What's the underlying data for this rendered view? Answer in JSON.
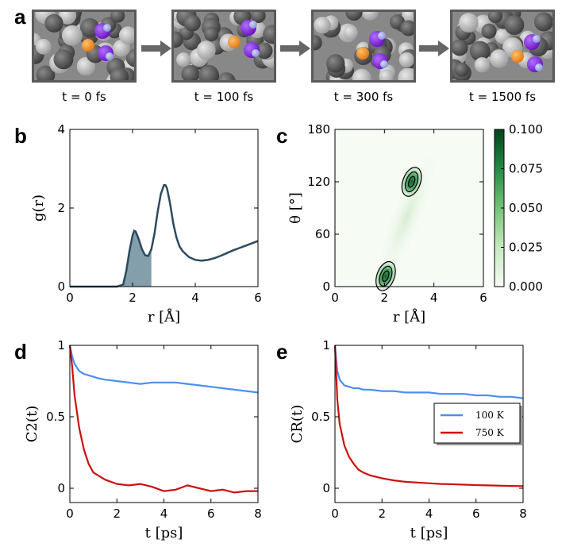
{
  "panel_a": {
    "letter": "a",
    "snapshots": [
      {
        "label": "t = 0 fs"
      },
      {
        "label": "t = 100 fs"
      },
      {
        "label": "t = 300 fs"
      },
      {
        "label": "t = 1500 fs"
      }
    ]
  },
  "colors": {
    "dark_atom": "#505050",
    "light_atom": "#b4b4b4",
    "orange_atom": "#f08c1e",
    "purple_atom": "#8a2be2",
    "rdf_line": "#2c4a5e",
    "rdf_fill": "#6f8d9e",
    "blue_series": "#4a8ff0",
    "red_series": "#cc1010",
    "arrow": "#666666"
  },
  "chart_data": [
    {
      "panel": "b",
      "type": "area",
      "xlabel": "r [Å]",
      "ylabel": "g(r)",
      "xlim": [
        0,
        6
      ],
      "ylim": [
        0,
        4
      ],
      "xticks": [
        "0",
        "2",
        "4",
        "6"
      ],
      "yticks": [
        "0",
        "2",
        "4"
      ],
      "shaded_range": [
        1.7,
        2.6
      ],
      "x": [
        0,
        1.5,
        1.7,
        1.8,
        1.9,
        2.0,
        2.05,
        2.1,
        2.2,
        2.3,
        2.4,
        2.5,
        2.6,
        2.7,
        2.8,
        2.9,
        3.0,
        3.05,
        3.1,
        3.2,
        3.3,
        3.4,
        3.5,
        3.6,
        3.8,
        4.0,
        4.2,
        4.4,
        4.6,
        4.8,
        5.0,
        5.2,
        5.4,
        5.6,
        5.8,
        6.0
      ],
      "y": [
        0,
        0,
        0.05,
        0.4,
        0.9,
        1.3,
        1.42,
        1.4,
        1.2,
        0.95,
        0.8,
        0.78,
        0.95,
        1.35,
        1.9,
        2.35,
        2.58,
        2.58,
        2.5,
        2.1,
        1.6,
        1.25,
        1.02,
        0.9,
        0.75,
        0.68,
        0.66,
        0.68,
        0.72,
        0.78,
        0.85,
        0.92,
        0.98,
        1.04,
        1.1,
        1.16
      ]
    },
    {
      "panel": "c",
      "type": "heatmap",
      "xlabel": "r [Å]",
      "ylabel": "θ [°]",
      "xlim": [
        0,
        6
      ],
      "ylim": [
        0,
        180
      ],
      "xticks": [
        "0",
        "2",
        "4",
        "6"
      ],
      "yticks": [
        "0",
        "60",
        "120",
        "180"
      ],
      "colorbar": {
        "min": 0.0,
        "max": 0.1,
        "ticks": [
          "0.000",
          "0.025",
          "0.050",
          "0.075",
          "0.100"
        ]
      },
      "peaks": [
        {
          "r": 2.05,
          "theta": 12,
          "value": 0.06
        },
        {
          "r": 3.1,
          "theta": 120,
          "value": 0.07
        }
      ]
    },
    {
      "panel": "d",
      "type": "line",
      "xlabel": "t [ps]",
      "ylabel": "C2(t)",
      "xlim": [
        0,
        8
      ],
      "ylim": [
        -0.1,
        1
      ],
      "xticks": [
        "0",
        "2",
        "4",
        "6",
        "8"
      ],
      "yticks": [
        "0",
        "0.5",
        "1"
      ],
      "x": [
        0,
        0.1,
        0.2,
        0.4,
        0.6,
        0.8,
        1.0,
        1.2,
        1.5,
        2.0,
        2.5,
        3.0,
        3.5,
        4.0,
        4.5,
        5.0,
        5.5,
        6.0,
        6.5,
        7.0,
        7.5,
        8.0
      ],
      "series": [
        {
          "name": "100 K",
          "values": [
            1.0,
            0.92,
            0.87,
            0.82,
            0.8,
            0.79,
            0.78,
            0.77,
            0.76,
            0.75,
            0.74,
            0.73,
            0.74,
            0.74,
            0.74,
            0.73,
            0.72,
            0.71,
            0.7,
            0.69,
            0.68,
            0.67
          ]
        },
        {
          "name": "750 K",
          "values": [
            1.0,
            0.85,
            0.65,
            0.42,
            0.27,
            0.17,
            0.11,
            0.09,
            0.06,
            0.03,
            0.02,
            0.03,
            0.01,
            -0.02,
            -0.01,
            0.02,
            0.0,
            -0.02,
            -0.01,
            -0.03,
            -0.02,
            -0.02
          ]
        }
      ]
    },
    {
      "panel": "e",
      "type": "line",
      "xlabel": "t [ps]",
      "ylabel": "CR(t)",
      "xlim": [
        0,
        8
      ],
      "ylim": [
        -0.1,
        1
      ],
      "xticks": [
        "0",
        "2",
        "4",
        "6",
        "8"
      ],
      "yticks": [
        "0",
        "0.5",
        "1"
      ],
      "x": [
        0,
        0.1,
        0.2,
        0.4,
        0.6,
        0.8,
        1.0,
        1.2,
        1.5,
        2.0,
        2.5,
        3.0,
        3.5,
        4.0,
        4.5,
        5.0,
        5.5,
        6.0,
        6.5,
        7.0,
        7.5,
        8.0
      ],
      "series": [
        {
          "name": "100 K",
          "values": [
            1.0,
            0.82,
            0.76,
            0.72,
            0.71,
            0.7,
            0.7,
            0.69,
            0.69,
            0.68,
            0.68,
            0.67,
            0.67,
            0.67,
            0.66,
            0.66,
            0.66,
            0.65,
            0.65,
            0.64,
            0.64,
            0.63
          ]
        },
        {
          "name": "750 K",
          "values": [
            1.0,
            0.62,
            0.45,
            0.3,
            0.22,
            0.17,
            0.13,
            0.11,
            0.09,
            0.07,
            0.055,
            0.045,
            0.04,
            0.035,
            0.03,
            0.028,
            0.025,
            0.022,
            0.02,
            0.018,
            0.016,
            0.015
          ]
        }
      ],
      "legend": {
        "placement": "right",
        "entries": [
          "100 K",
          "750 K"
        ]
      }
    }
  ],
  "panel_letters": {
    "b": "b",
    "c": "c",
    "d": "d",
    "e": "e"
  }
}
